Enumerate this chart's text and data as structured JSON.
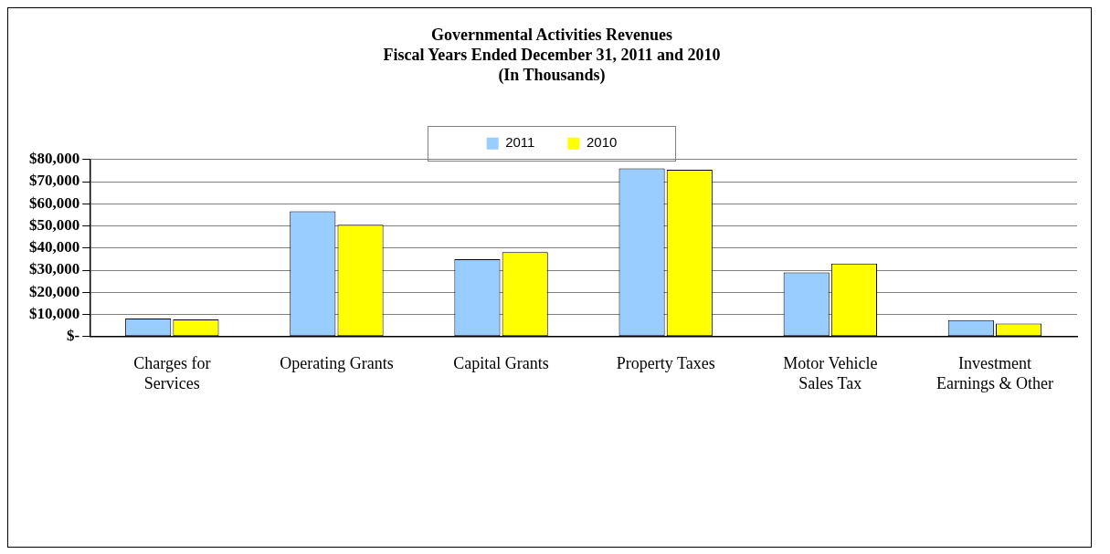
{
  "chart_data": {
    "type": "bar",
    "title": "Governmental Activities Revenues",
    "subtitle": "Fiscal Years Ended December 31, 2011 and 2010\n(In Thousands)",
    "categories": [
      "Charges for\nServices",
      "Operating Grants",
      "Capital Grants",
      "Property Taxes",
      "Motor Vehicle\nSales Tax",
      "Investment\nEarnings & Other"
    ],
    "series": [
      {
        "name": "2011",
        "color": "#99ccff",
        "values": [
          8200,
          56600,
          35000,
          76000,
          29000,
          7400
        ]
      },
      {
        "name": "2010",
        "color": "#ffff00",
        "values": [
          7800,
          50500,
          38200,
          75400,
          33000,
          5900
        ]
      }
    ],
    "ylim": [
      0,
      80000
    ],
    "yticks": [
      {
        "value": 0,
        "label": "$-"
      },
      {
        "value": 10000,
        "label": "$10,000"
      },
      {
        "value": 20000,
        "label": "$20,000"
      },
      {
        "value": 30000,
        "label": "$30,000"
      },
      {
        "value": 40000,
        "label": "$40,000"
      },
      {
        "value": 50000,
        "label": "$50,000"
      },
      {
        "value": 60000,
        "label": "$60,000"
      },
      {
        "value": 70000,
        "label": "$70,000"
      },
      {
        "value": 80000,
        "label": "$80,000"
      }
    ],
    "grid": "y",
    "legend": "top"
  }
}
